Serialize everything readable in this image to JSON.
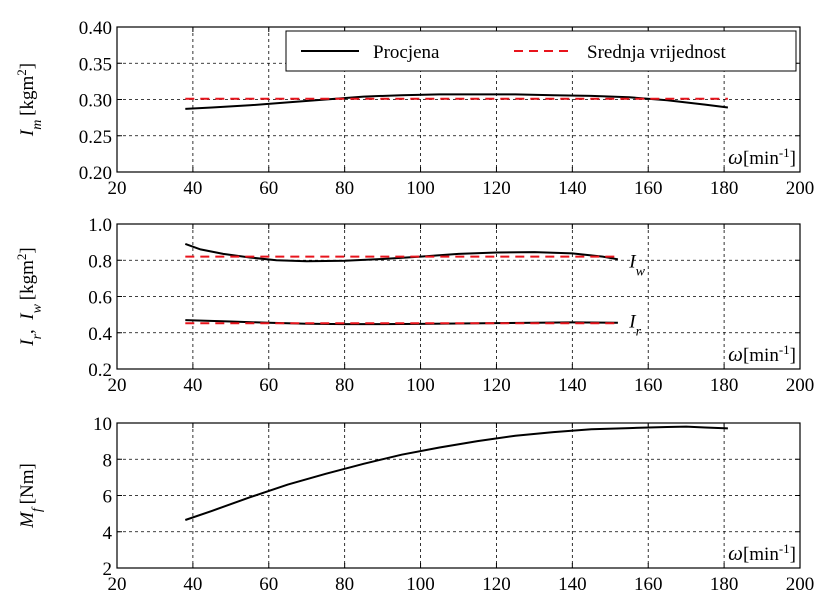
{
  "legend": {
    "estimate": "Procjena",
    "mean": "Srednja vrijednost",
    "placement": "top-right"
  },
  "colors": {
    "estimate": "#000000",
    "mean": "#e8141c"
  },
  "chart_data": [
    {
      "type": "line",
      "ylabel_main": "I",
      "ylabel_sub": "m",
      "ylabel_unit": "[kgm",
      "ylabel_sup": "2",
      "ylabel_close": "]",
      "xlabel_sym": "ω",
      "xlabel_unit": "[min",
      "xlabel_sup": "-1",
      "xlabel_close": "]",
      "xlim": [
        20,
        200
      ],
      "ylim": [
        0.2,
        0.4
      ],
      "xticks": [
        "20",
        "40",
        "60",
        "80",
        "100",
        "120",
        "140",
        "160",
        "180",
        "200"
      ],
      "yticks": [
        "0.20",
        "0.25",
        "0.30",
        "0.35",
        "0.40"
      ],
      "grid": true,
      "series": [
        {
          "name": "Procjena",
          "kind": "estimate",
          "x": [
            38,
            45,
            55,
            65,
            75,
            85,
            95,
            105,
            115,
            125,
            135,
            145,
            155,
            165,
            175,
            181
          ],
          "y": [
            0.287,
            0.289,
            0.292,
            0.296,
            0.3,
            0.304,
            0.306,
            0.307,
            0.307,
            0.307,
            0.306,
            0.305,
            0.303,
            0.299,
            0.293,
            0.289
          ]
        },
        {
          "name": "Srednja vrijednost",
          "kind": "mean",
          "x": [
            38,
            181
          ],
          "y": [
            0.301,
            0.301
          ]
        }
      ]
    },
    {
      "type": "line",
      "ylabel_main": "I",
      "ylabel_sub": "r",
      "ylabel_main2": "I",
      "ylabel_sub2": "w",
      "ylabel_unit": "[kgm",
      "ylabel_sup": "2",
      "ylabel_close": "]",
      "xlabel_sym": "ω",
      "xlabel_unit": "[min",
      "xlabel_sup": "-1",
      "xlabel_close": "]",
      "xlim": [
        20,
        200
      ],
      "ylim": [
        0.2,
        1.0
      ],
      "xticks": [
        "20",
        "40",
        "60",
        "80",
        "100",
        "120",
        "140",
        "160",
        "180",
        "200"
      ],
      "yticks": [
        "0.2",
        "0.4",
        "0.6",
        "0.8",
        "1.0"
      ],
      "grid": true,
      "annotations": [
        {
          "main": "I",
          "sub": "w",
          "x": 155,
          "y": 0.76
        },
        {
          "main": "I",
          "sub": "r",
          "x": 155,
          "y": 0.43
        }
      ],
      "series": [
        {
          "name": "I_w",
          "kind": "estimate",
          "x": [
            38,
            42,
            48,
            55,
            62,
            70,
            80,
            90,
            100,
            110,
            120,
            130,
            140,
            148,
            152
          ],
          "y": [
            0.89,
            0.86,
            0.835,
            0.815,
            0.8,
            0.795,
            0.797,
            0.807,
            0.82,
            0.835,
            0.843,
            0.845,
            0.838,
            0.82,
            0.805
          ]
        },
        {
          "name": "I_w mean",
          "kind": "mean",
          "x": [
            38,
            152
          ],
          "y": [
            0.82,
            0.82
          ]
        },
        {
          "name": "I_r",
          "kind": "estimate",
          "x": [
            38,
            50,
            60,
            70,
            80,
            90,
            100,
            110,
            120,
            130,
            140,
            152
          ],
          "y": [
            0.47,
            0.462,
            0.455,
            0.45,
            0.448,
            0.448,
            0.449,
            0.451,
            0.453,
            0.455,
            0.457,
            0.455
          ]
        },
        {
          "name": "I_r mean",
          "kind": "mean",
          "x": [
            38,
            152
          ],
          "y": [
            0.452,
            0.452
          ]
        }
      ]
    },
    {
      "type": "line",
      "ylabel_main": "M",
      "ylabel_sub": "f",
      "ylabel_unit": "[Nm]",
      "xlabel_sym": "ω",
      "xlabel_unit": "[min",
      "xlabel_sup": "-1",
      "xlabel_close": "]",
      "xlim": [
        20,
        200
      ],
      "ylim": [
        2,
        10
      ],
      "xticks": [
        "20",
        "40",
        "60",
        "80",
        "100",
        "120",
        "140",
        "160",
        "180",
        "200"
      ],
      "yticks": [
        "2",
        "4",
        "6",
        "8",
        "10"
      ],
      "grid": true,
      "series": [
        {
          "name": "M_f",
          "kind": "estimate",
          "x": [
            38,
            45,
            55,
            65,
            75,
            85,
            95,
            105,
            115,
            125,
            135,
            145,
            155,
            165,
            170,
            175,
            181
          ],
          "y": [
            4.65,
            5.15,
            5.9,
            6.6,
            7.2,
            7.75,
            8.25,
            8.65,
            9.0,
            9.3,
            9.5,
            9.65,
            9.72,
            9.78,
            9.8,
            9.75,
            9.7
          ]
        }
      ]
    }
  ]
}
